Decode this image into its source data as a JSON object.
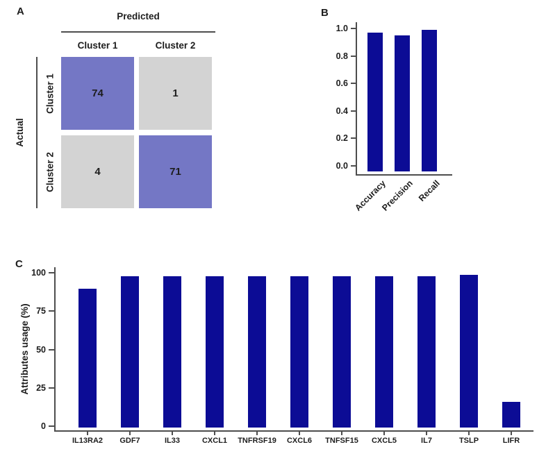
{
  "panels": {
    "a": {
      "label": "A"
    },
    "b": {
      "label": "B"
    },
    "c": {
      "label": "C"
    }
  },
  "colors": {
    "bar_blue": "#0c0c95",
    "matrix_diagonal": "#7477c5",
    "matrix_off_diagonal": "#d3d3d3",
    "axis_line": "#4d4d4d",
    "text": "#1d1d1d"
  },
  "chart_data": [
    {
      "panel": "A",
      "type": "heatmap",
      "description": "Confusion matrix of actual vs predicted cluster assignment",
      "x_axis_title": "Predicted",
      "y_axis_title": "Actual",
      "x_categories": [
        "Cluster 1",
        "Cluster 2"
      ],
      "y_categories": [
        "Cluster 1",
        "Cluster 2"
      ],
      "values": [
        [
          74,
          1
        ],
        [
          4,
          71
        ]
      ],
      "cell_colors": [
        [
          "#7477c5",
          "#d3d3d3"
        ],
        [
          "#d3d3d3",
          "#7477c5"
        ]
      ]
    },
    {
      "panel": "B",
      "type": "bar",
      "title": "",
      "categories": [
        "Accuracy",
        "Precision",
        "Recall"
      ],
      "values": [
        0.97,
        0.95,
        0.99
      ],
      "xlabel": "",
      "ylabel": "",
      "ylim": [
        0.0,
        1.0
      ],
      "yticks": [
        "1.0",
        "0.8",
        "0.6",
        "0.4",
        "0.2",
        "0.0"
      ],
      "bar_color": "#0c0c95",
      "grid": false,
      "legend": "none"
    },
    {
      "panel": "C",
      "type": "bar",
      "title": "",
      "categories": [
        "IL13RA2",
        "GDF7",
        "IL33",
        "CXCL1",
        "TNFRSF19",
        "CXCL6",
        "TNFSF15",
        "CXCL5",
        "IL7",
        "TSLP",
        "LIFR"
      ],
      "values": [
        91,
        99,
        99,
        99,
        99,
        99,
        99,
        99,
        99,
        100,
        17
      ],
      "xlabel": "",
      "ylabel": "Attributes usage (%)",
      "ylim": [
        0,
        100
      ],
      "yticks": [
        "100",
        "75",
        "50",
        "25",
        "0"
      ],
      "bar_color": "#0c0c95",
      "grid": false,
      "legend": "none"
    }
  ]
}
